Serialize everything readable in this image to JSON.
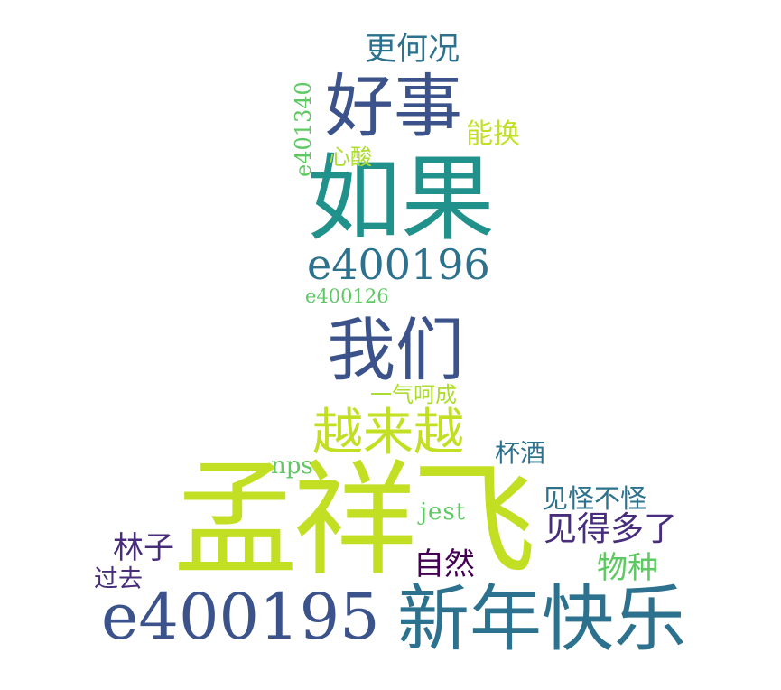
{
  "word_cloud": {
    "words": [
      {
        "text": "孟祥飞",
        "color": "#c2df23"
      },
      {
        "text": "e400195",
        "color": "#3b528b"
      },
      {
        "text": "新年快乐",
        "color": "#2c728e"
      },
      {
        "text": "如果",
        "color": "#21918c"
      },
      {
        "text": "好事",
        "color": "#3b528b"
      },
      {
        "text": "我们",
        "color": "#3b528b"
      },
      {
        "text": "e400196",
        "color": "#2c728e"
      },
      {
        "text": "越来越",
        "color": "#c2df23"
      },
      {
        "text": "更何况",
        "color": "#2c728e"
      },
      {
        "text": "能换",
        "color": "#c2df23"
      },
      {
        "text": "e401340",
        "color": "#5ec962"
      },
      {
        "text": "心酸",
        "color": "#addc30"
      },
      {
        "text": "e400126",
        "color": "#5ec962"
      },
      {
        "text": "一气呵成",
        "color": "#addc30"
      },
      {
        "text": "nps",
        "color": "#5ec962"
      },
      {
        "text": "杯酒",
        "color": "#2c728e"
      },
      {
        "text": "见怪不怪",
        "color": "#2c728e"
      },
      {
        "text": "jest",
        "color": "#5ec962"
      },
      {
        "text": "见得多了",
        "color": "#472d7b"
      },
      {
        "text": "林子",
        "color": "#472d7b"
      },
      {
        "text": "自然",
        "color": "#440154"
      },
      {
        "text": "物种",
        "color": "#5ec962"
      },
      {
        "text": "过去",
        "color": "#472d7b"
      }
    ]
  }
}
